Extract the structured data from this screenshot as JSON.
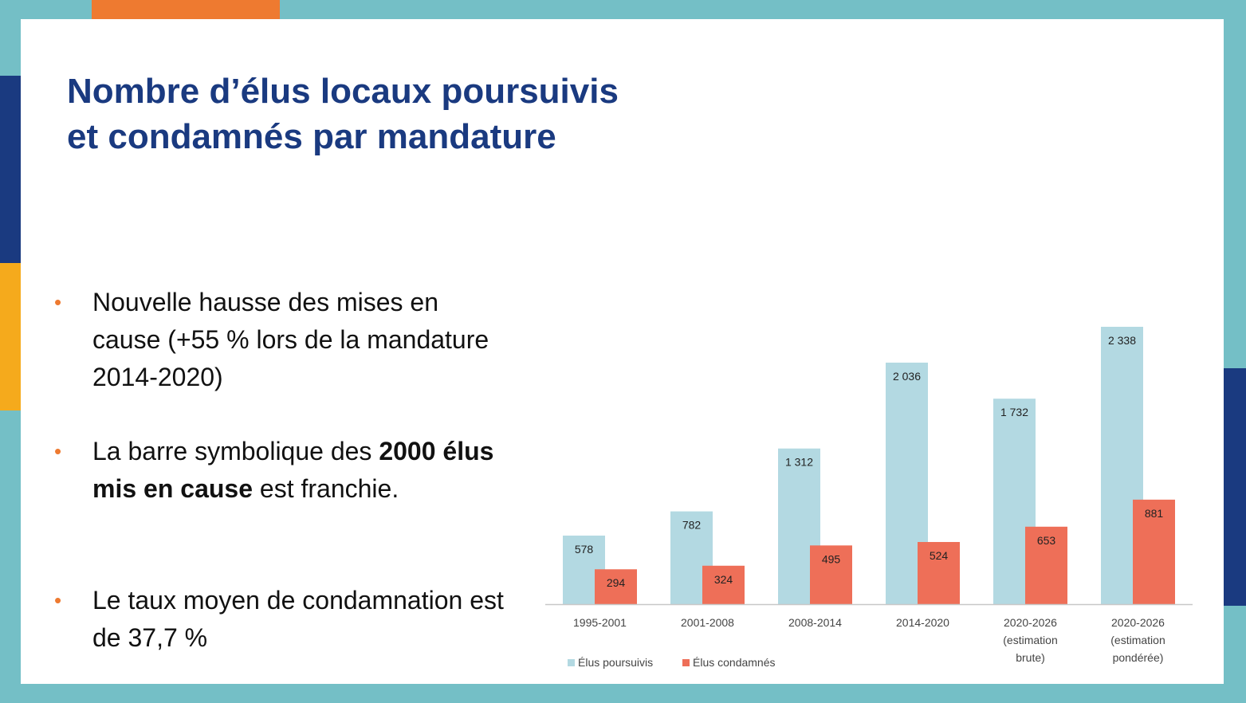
{
  "slide": {
    "title_lines": [
      "Nombre d’élus locaux poursuivis",
      "et condamnés par mandature"
    ],
    "bullets": [
      {
        "parts": [
          {
            "text": "Nouvelle hausse des mises en cause (+55 % lors de la mandature 2014-2020)",
            "bold": false
          }
        ]
      },
      {
        "parts": [
          {
            "text": "La barre symbolique des ",
            "bold": false
          },
          {
            "text": "2000 élus mis en cause",
            "bold": true
          },
          {
            "text": " est franchie.",
            "bold": false
          }
        ]
      },
      {
        "parts": [
          {
            "text": "Le taux moyen de condamnation est de 37,7 %",
            "bold": false
          }
        ]
      }
    ],
    "bullet_symbol": "•"
  },
  "colors": {
    "frame": "#74bfc6",
    "title": "#1a3a80",
    "accent_orange": "#ee7a30",
    "accent_yellow": "#f5aa1c",
    "accent_navy": "#1a3a80",
    "series_poursuivis": "#b3d9e2",
    "series_condamnes": "#ee6f58"
  },
  "chart_data": {
    "type": "bar",
    "categories": [
      [
        "1995-2001"
      ],
      [
        "2001-2008"
      ],
      [
        "2008-2014"
      ],
      [
        "2014-2020"
      ],
      [
        "2020-2026",
        "(estimation",
        "brute)"
      ],
      [
        "2020-2026",
        "(estimation",
        "pondérée)"
      ]
    ],
    "series": [
      {
        "name": "Élus poursuivis",
        "values": [
          578,
          782,
          1312,
          2036,
          1732,
          2338
        ],
        "labels": [
          "578",
          "782",
          "1 312",
          "2 036",
          "1 732",
          "2 338"
        ]
      },
      {
        "name": "Élus condamnés",
        "values": [
          294,
          324,
          495,
          524,
          653,
          881
        ],
        "labels": [
          "294",
          "324",
          "495",
          "524",
          "653",
          "881"
        ]
      }
    ],
    "ylim": [
      0,
      2338
    ],
    "legend_position": "bottom-left",
    "grid": false
  }
}
